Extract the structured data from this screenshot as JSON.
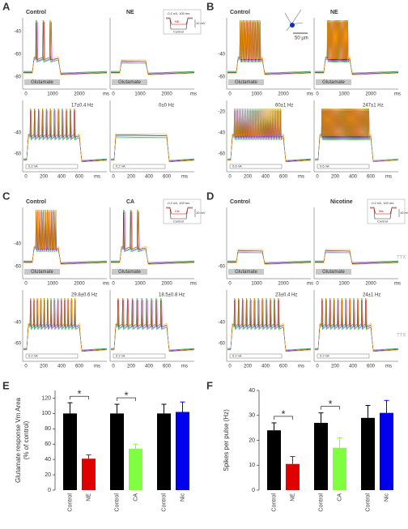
{
  "figure": {
    "panels": [
      {
        "label": "A",
        "conditions": [
          "Control",
          "NE"
        ],
        "top_yticks": [
          "-40",
          "-60",
          "-80"
        ],
        "top_xticks": [
          "0",
          "1000",
          "2000",
          "ms"
        ],
        "stimulus": "Glutamate",
        "rates": [
          "17±0.4 Hz",
          "0±0 Hz"
        ],
        "current": "0.2 nA",
        "bottom_yticks": [
          "-40",
          "-60"
        ],
        "bottom_xticks": [
          "0",
          "200",
          "400",
          "600",
          "ms"
        ],
        "inset": [
          "-0.2 nA, 100 ms",
          "NE",
          "Control",
          "10 mV"
        ]
      },
      {
        "label": "B",
        "conditions": [
          "Control",
          "NE"
        ],
        "top_yticks": [
          "-40",
          "-60"
        ],
        "top_xticks": [
          "0",
          "1000",
          "2000",
          "ms"
        ],
        "stimulus": "Glutamate",
        "rates": [
          "60±1 Hz",
          "247±1 Hz"
        ],
        "current": "0.6 nA",
        "bottom_yticks": [
          "-20",
          "-40",
          "-60"
        ],
        "bottom_xticks": [
          "0",
          "200",
          "400",
          "600",
          "ms"
        ],
        "scale": "50 µm"
      },
      {
        "label": "C",
        "conditions": [
          "Control",
          "CA"
        ],
        "top_yticks": [
          "-40",
          "-60"
        ],
        "top_xticks": [
          "0",
          "1000",
          "2000",
          "ms"
        ],
        "stimulus": "Glutamate",
        "rates": [
          "29.8±0.6 Hz",
          "18.5±0.8 Hz"
        ],
        "current": "0.2 nA",
        "bottom_yticks": [
          "-40",
          "-60"
        ],
        "bottom_xticks": [
          "0",
          "200",
          "400",
          "600",
          "ms"
        ],
        "inset": [
          "-0.2 nA, 100 ms",
          "CA",
          "Control",
          "10 mV"
        ]
      },
      {
        "label": "D",
        "conditions": [
          "Control",
          "Nicotine"
        ],
        "top_yticks": [
          "-60"
        ],
        "top_xticks": [
          "0",
          "1000",
          "2000",
          "ms"
        ],
        "stimulus": "Glutamate",
        "rates": [
          "23±0.4 Hz",
          "24±1 Hz"
        ],
        "current": "0.2 nA",
        "bottom_yticks": [
          "-40",
          "-60"
        ],
        "bottom_xticks": [
          "0",
          "200",
          "400",
          "600",
          "ms"
        ],
        "inset": [
          "-0.2 nA, 100 ms",
          "Nic",
          "Control",
          "10 mV"
        ],
        "ttx": "TTX"
      }
    ]
  },
  "chart_data": [
    {
      "type": "bar",
      "label": "E",
      "ylabel": [
        "Glutamate response Vm Area",
        "(% of control)"
      ],
      "categories": [
        "Control",
        "NE",
        "Control",
        "CA",
        "Control",
        "Nic"
      ],
      "values": [
        100,
        41,
        100,
        54,
        100,
        102
      ],
      "errors": [
        14,
        5,
        12,
        6,
        12,
        13
      ],
      "colors": [
        "#000000",
        "#e00000",
        "#000000",
        "#80ff40",
        "#000000",
        "#0000ee"
      ],
      "ylim": [
        0,
        130
      ],
      "yticks": [
        0,
        20,
        40,
        60,
        80,
        100,
        120
      ],
      "annotations": [
        "*",
        "*"
      ]
    },
    {
      "type": "bar",
      "label": "F",
      "ylabel": [
        "Spikes per pulse (Hz)"
      ],
      "categories": [
        "Control",
        "NE",
        "Control",
        "CA",
        "Control",
        "Nic"
      ],
      "values": [
        24,
        10.5,
        27,
        17,
        29,
        31
      ],
      "errors": [
        3,
        3,
        4,
        4,
        5,
        5
      ],
      "colors": [
        "#000000",
        "#e00000",
        "#000000",
        "#80ff40",
        "#000000",
        "#0000ee"
      ],
      "ylim": [
        0,
        40
      ],
      "yticks": [
        0,
        10,
        20,
        30,
        40
      ],
      "annotations": [
        "*",
        "*"
      ]
    }
  ]
}
